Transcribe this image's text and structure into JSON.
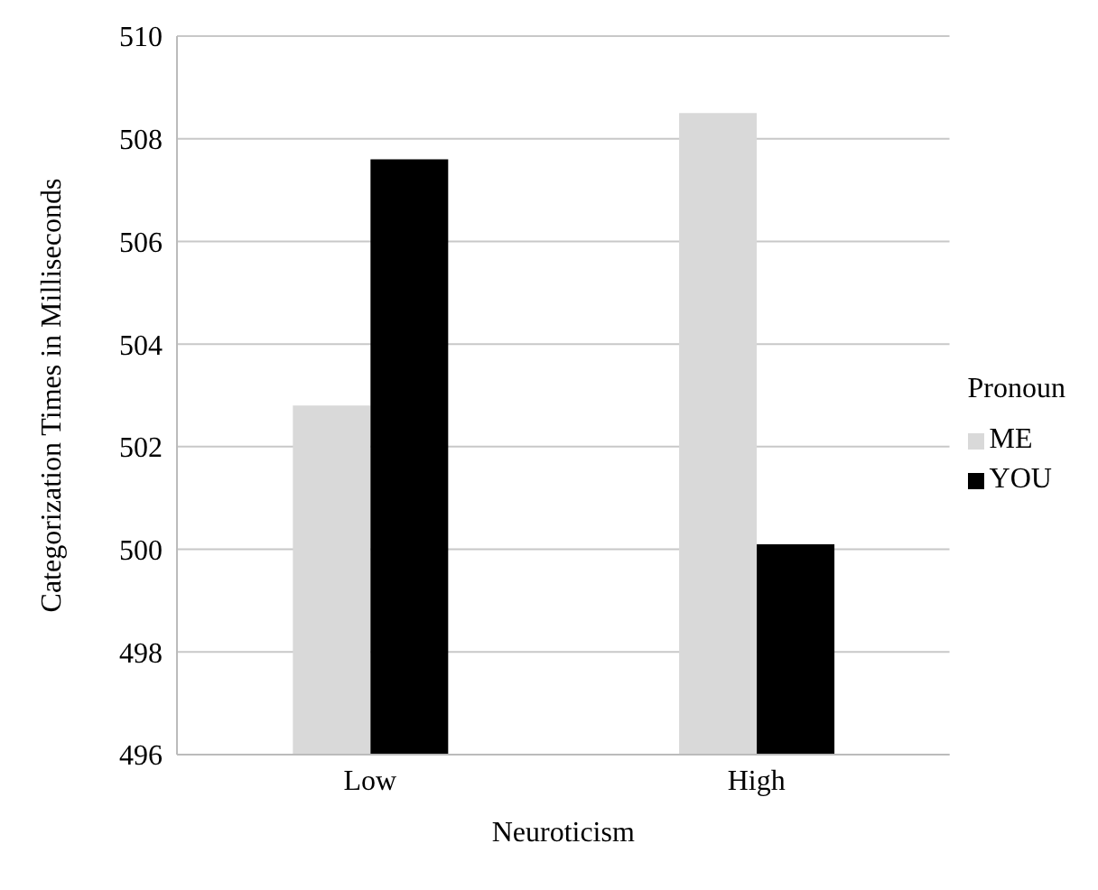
{
  "chart_data": {
    "type": "bar",
    "xlabel": "Neuroticism",
    "ylabel": "Categorization  Times in Milliseconds",
    "legend_title": "Pronoun",
    "categories": [
      "Low",
      "High"
    ],
    "series": [
      {
        "name": "ME",
        "color": "#d9d9d9",
        "values": [
          502.8,
          508.5
        ]
      },
      {
        "name": "YOU",
        "color": "#000000",
        "values": [
          507.6,
          500.1
        ]
      }
    ],
    "ylim": [
      496,
      510
    ],
    "yticks": [
      496,
      498,
      500,
      502,
      504,
      506,
      508,
      510
    ],
    "grid": "y",
    "legend": "right"
  }
}
